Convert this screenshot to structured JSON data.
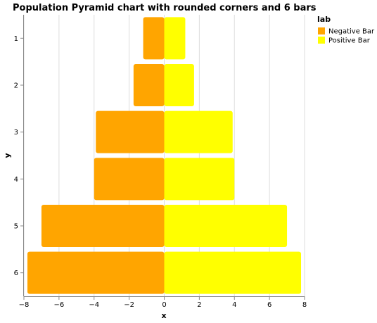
{
  "chart_data": {
    "type": "bar",
    "orientation": "horizontal",
    "title": "Population Pyramid chart with rounded corners and 6 bars",
    "xlabel": "x",
    "ylabel": "y",
    "xlim": [
      -8,
      8
    ],
    "x_ticks": [
      -8,
      -6,
      -4,
      -2,
      0,
      2,
      4,
      6,
      8
    ],
    "x_tick_labels": [
      "−8",
      "−6",
      "−4",
      "−2",
      "0",
      "2",
      "4",
      "6",
      "8"
    ],
    "categories": [
      "1",
      "2",
      "3",
      "4",
      "5",
      "6"
    ],
    "grid": true,
    "legend_title": "lab",
    "legend_position": "top-right",
    "series": [
      {
        "name": "Negative Bar",
        "color": "#ffa500",
        "values": [
          -1.2,
          -1.75,
          -3.9,
          -4.0,
          -7.0,
          -7.8
        ]
      },
      {
        "name": "Positive Bar",
        "color": "#ffff00",
        "values": [
          1.2,
          1.7,
          3.9,
          4.0,
          7.0,
          7.8
        ]
      }
    ]
  }
}
